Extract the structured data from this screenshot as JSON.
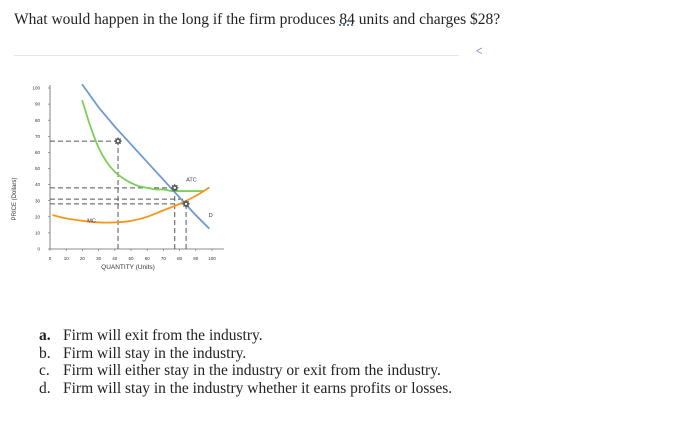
{
  "question": {
    "before": "What would happen in the long if the firm produces ",
    "quantity": "84",
    "middle": " units and charges ",
    "price": "$28?"
  },
  "caret_glyph": "ᐸ",
  "chart_data": {
    "type": "line",
    "xlabel": "QUANTITY (Units)",
    "ylabel": "PRICE (Dollars)",
    "xlim": [
      0,
      100
    ],
    "ylim": [
      0,
      100
    ],
    "xticks": [
      0,
      10,
      20,
      30,
      40,
      50,
      60,
      70,
      80,
      90,
      100
    ],
    "yticks": [
      0,
      10,
      20,
      30,
      40,
      50,
      60,
      70,
      80,
      90,
      100
    ],
    "series": [
      {
        "name": "ATC",
        "color": "#7ccf58",
        "x": [
          20,
          25,
          30,
          35,
          40,
          45,
          50,
          55,
          60,
          65,
          70,
          75,
          80,
          85,
          90,
          95
        ],
        "y": [
          92,
          76,
          63,
          54,
          48,
          44,
          41,
          39,
          38,
          37,
          37,
          36,
          36,
          36,
          36,
          36
        ]
      },
      {
        "name": "MC",
        "color": "#f5961e",
        "x": [
          2,
          10,
          20,
          30,
          40,
          50,
          60,
          70,
          80,
          90,
          98
        ],
        "y": [
          21,
          19,
          17.5,
          16.5,
          16.5,
          17.5,
          20,
          24,
          28,
          33,
          38
        ]
      },
      {
        "name": "D",
        "color": "#6f9bd1",
        "x": [
          20,
          30,
          40,
          50,
          60,
          70,
          80,
          90,
          98
        ],
        "y": [
          102,
          88,
          76,
          65,
          54,
          43,
          32,
          21,
          13
        ]
      }
    ],
    "guides": {
      "color": "#555555",
      "dash": "5 3",
      "lines": [
        {
          "x": [
            0,
            42
          ],
          "y": [
            67,
            67
          ]
        },
        {
          "x": [
            42,
            42
          ],
          "y": [
            0,
            67
          ]
        },
        {
          "x": [
            0,
            77
          ],
          "y": [
            38,
            38
          ]
        },
        {
          "x": [
            77,
            77
          ],
          "y": [
            0,
            38
          ]
        },
        {
          "x": [
            0,
            84
          ],
          "y": [
            28,
            28
          ]
        },
        {
          "x": [
            84,
            84
          ],
          "y": [
            0,
            28
          ]
        },
        {
          "x": [
            0,
            84
          ],
          "y": [
            31,
            31
          ]
        }
      ]
    },
    "points": [
      {
        "x": 42,
        "y": 67
      },
      {
        "x": 77,
        "y": 38
      },
      {
        "x": 84,
        "y": 28
      }
    ],
    "marker_color": "#555555",
    "labels": [
      {
        "text": "ATC",
        "x": 84,
        "y": 42
      },
      {
        "text": "MC",
        "x": 23,
        "y": 16.5
      },
      {
        "text": "D",
        "x": 98,
        "y": 20
      }
    ]
  },
  "options": [
    {
      "letter": "a.",
      "text": "Firm will exit from the industry."
    },
    {
      "letter": "b.",
      "text": "Firm will stay in the industry."
    },
    {
      "letter": "c.",
      "text": "Firm will either stay in the industry or exit from the industry."
    },
    {
      "letter": "d.",
      "text": "Firm will stay in the industry whether it earns profits or losses."
    }
  ]
}
